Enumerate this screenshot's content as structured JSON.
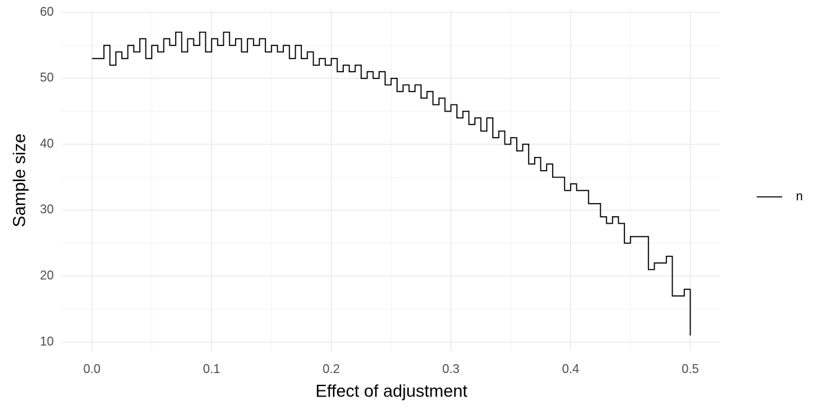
{
  "chart_data": {
    "type": "line",
    "step": "hv",
    "x_label": "Effect of adjustment",
    "y_label": "Sample size",
    "x": [
      0,
      0.005,
      0.01,
      0.015,
      0.02,
      0.025,
      0.03,
      0.035,
      0.04,
      0.045,
      0.05,
      0.055,
      0.06,
      0.065,
      0.07,
      0.075,
      0.08,
      0.085,
      0.09,
      0.095,
      0.1,
      0.105,
      0.11,
      0.115,
      0.12,
      0.125,
      0.13,
      0.135,
      0.14,
      0.145,
      0.15,
      0.155,
      0.16,
      0.165,
      0.17,
      0.175,
      0.18,
      0.185,
      0.19,
      0.195,
      0.2,
      0.205,
      0.21,
      0.215,
      0.22,
      0.225,
      0.23,
      0.235,
      0.24,
      0.245,
      0.25,
      0.255,
      0.26,
      0.265,
      0.27,
      0.275,
      0.28,
      0.285,
      0.29,
      0.295,
      0.3,
      0.305,
      0.31,
      0.315,
      0.32,
      0.325,
      0.33,
      0.335,
      0.34,
      0.345,
      0.35,
      0.355,
      0.36,
      0.365,
      0.37,
      0.375,
      0.38,
      0.385,
      0.39,
      0.395,
      0.4,
      0.405,
      0.41,
      0.415,
      0.42,
      0.425,
      0.43,
      0.435,
      0.44,
      0.445,
      0.45,
      0.455,
      0.46,
      0.465,
      0.47,
      0.475,
      0.48,
      0.485,
      0.49,
      0.495,
      0.5
    ],
    "series": [
      {
        "name": "n",
        "color": "#000000",
        "values": [
          53,
          53,
          55,
          52,
          54,
          53,
          55,
          54,
          56,
          53,
          55,
          54,
          56,
          55,
          57,
          54,
          56,
          55,
          57,
          54,
          56,
          55,
          57,
          55,
          56,
          54,
          56,
          55,
          56,
          54,
          55,
          54,
          55,
          53,
          55,
          53,
          54,
          52,
          53,
          52,
          53,
          51,
          52,
          51,
          52,
          50,
          51,
          50,
          51,
          49,
          50,
          48,
          49,
          48,
          49,
          47,
          48,
          46,
          47,
          45,
          46,
          44,
          45,
          43,
          44,
          42,
          44,
          41,
          42,
          40,
          41,
          39,
          40,
          37,
          38,
          36,
          37,
          35,
          35,
          33,
          34,
          33,
          33,
          31,
          31,
          29,
          28,
          29,
          28,
          25,
          26,
          26,
          26,
          21,
          22,
          22,
          23,
          17,
          17,
          18,
          11
        ]
      }
    ],
    "xlim": [
      -0.025,
      0.525
    ],
    "ylim": [
      8.65,
      60.35
    ],
    "xticks": [
      {
        "value": 0,
        "label": "0.0"
      },
      0.1,
      0.2,
      0.3,
      0.4,
      0.5
    ],
    "yticks": [
      10,
      20,
      30,
      40,
      50,
      60
    ],
    "xminor": [
      0.05,
      0.15,
      0.25,
      0.35,
      0.45
    ],
    "yminor": [
      15,
      25,
      35,
      45,
      55
    ],
    "grid": true,
    "legend": "right"
  }
}
